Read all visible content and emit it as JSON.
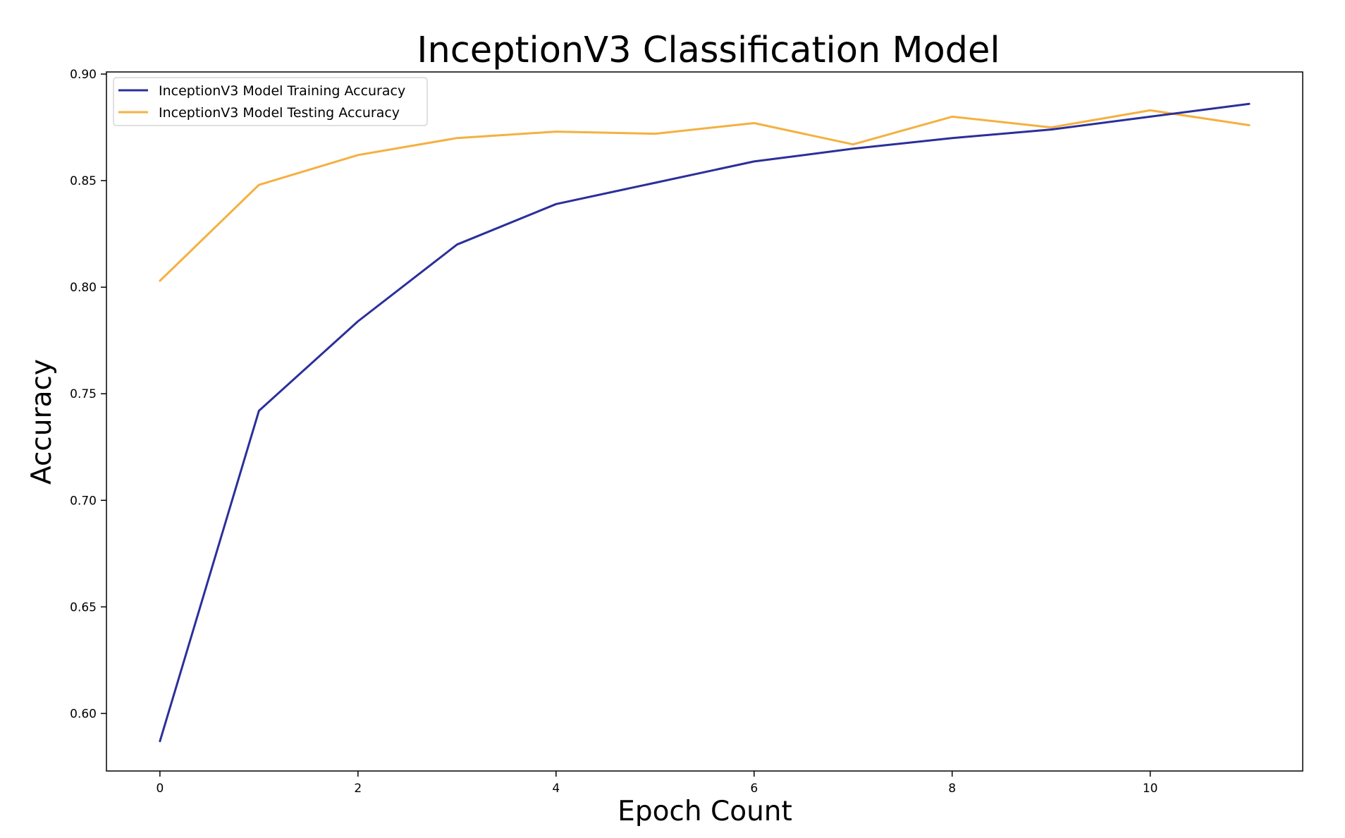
{
  "chart_data": {
    "type": "line",
    "title": "InceptionV3 Classification Model",
    "xlabel": "Epoch Count",
    "ylabel": "Accuracy",
    "x": [
      0,
      1,
      2,
      3,
      4,
      5,
      6,
      7,
      8,
      9,
      10,
      11
    ],
    "xlim": [
      -0.54,
      11.54
    ],
    "ylim": [
      0.573,
      0.901
    ],
    "xticks": [
      0,
      2,
      4,
      6,
      8,
      10
    ],
    "yticks": [
      0.6,
      0.65,
      0.7,
      0.75,
      0.8,
      0.85,
      0.9
    ],
    "xtick_labels": [
      "0",
      "2",
      "4",
      "6",
      "8",
      "10"
    ],
    "ytick_labels": [
      "0.60",
      "0.65",
      "0.70",
      "0.75",
      "0.80",
      "0.85",
      "0.90"
    ],
    "grid": false,
    "legend_position": "top-left",
    "series": [
      {
        "name": "InceptionV3 Model Training Accuracy",
        "color": "#2b2f9a",
        "values": [
          0.587,
          0.742,
          0.784,
          0.82,
          0.839,
          0.849,
          0.859,
          0.865,
          0.87,
          0.874,
          0.88,
          0.886
        ]
      },
      {
        "name": "InceptionV3 Model Testing Accuracy",
        "color": "#f5b041",
        "values": [
          0.803,
          0.848,
          0.862,
          0.87,
          0.873,
          0.872,
          0.877,
          0.867,
          0.88,
          0.875,
          0.883,
          0.876
        ]
      }
    ]
  }
}
